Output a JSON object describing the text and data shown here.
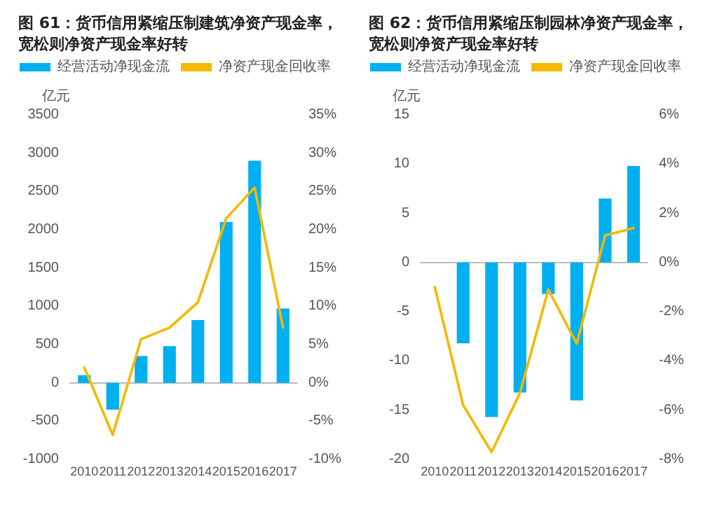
{
  "chart_data": [
    {
      "type": "bar",
      "title": "图 61：货币信用紧缩压制建筑净资产现金率，宽松则净资产现金率好转",
      "ylabel": "亿元",
      "categories": [
        "2010",
        "2011",
        "2012",
        "2013",
        "2014",
        "2015",
        "2016",
        "2017"
      ],
      "series": [
        {
          "name": "经营活动净现金流",
          "color": "#00b0f0",
          "values": [
            100,
            -350,
            350,
            480,
            820,
            2100,
            2900,
            970
          ]
        },
        {
          "name": "净资产现金回收率",
          "type": "line",
          "axis": "y2",
          "color": "#f5b800",
          "values": [
            2,
            -6.8,
            5.7,
            7.2,
            10.5,
            21.5,
            25.5,
            7.2
          ]
        }
      ],
      "ylim": [
        -1000,
        3500
      ],
      "yticks": [
        -1000,
        -500,
        0,
        500,
        1000,
        1500,
        2000,
        2500,
        3000,
        3500
      ],
      "y2lim": [
        -10,
        35
      ],
      "y2ticks": [
        {
          "value": -10,
          "label": "-10%"
        },
        {
          "value": -5,
          "label": "-5%"
        },
        {
          "value": 0,
          "label": "0%"
        },
        {
          "value": 5,
          "label": "5%"
        },
        {
          "value": 10,
          "label": "10%"
        },
        {
          "value": 15,
          "label": "15%"
        },
        {
          "value": 20,
          "label": "20%"
        },
        {
          "value": 25,
          "label": "25%"
        },
        {
          "value": 30,
          "label": "30%"
        },
        {
          "value": 35,
          "label": "35%"
        }
      ],
      "legend": "top",
      "marker": "none",
      "line_style": "solid"
    },
    {
      "type": "bar",
      "title": "图 62：货币信用紧缩压制园林净资产现金率，宽松则净资产现金率好转",
      "ylabel": "亿元",
      "categories": [
        "2010",
        "2011",
        "2012",
        "2013",
        "2014",
        "2015",
        "2016",
        "2017"
      ],
      "series": [
        {
          "name": "经营活动净现金流",
          "color": "#00b0f0",
          "values": [
            0,
            -8.2,
            -15.7,
            -13.2,
            -3.2,
            -14,
            6.5,
            9.8
          ]
        },
        {
          "name": "净资产现金回收率",
          "type": "line",
          "axis": "y2",
          "color": "#f5b800",
          "values": [
            -1,
            -5.8,
            -7.7,
            -5.3,
            -1.1,
            -3.3,
            1.1,
            1.4
          ]
        }
      ],
      "ylim": [
        -20,
        15
      ],
      "yticks": [
        -20,
        -15,
        -10,
        -5,
        0,
        5,
        10,
        15
      ],
      "y2lim": [
        -8,
        6
      ],
      "y2ticks": [
        {
          "value": -8,
          "label": "-8%"
        },
        {
          "value": -6,
          "label": "-6%"
        },
        {
          "value": -4,
          "label": "-4%"
        },
        {
          "value": -2,
          "label": "-2%"
        },
        {
          "value": 0,
          "label": "0%"
        },
        {
          "value": 2,
          "label": "2%"
        },
        {
          "value": 4,
          "label": "4%"
        },
        {
          "value": 6,
          "label": "6%"
        }
      ],
      "legend": "top",
      "marker": "none",
      "line_style": "solid"
    }
  ]
}
